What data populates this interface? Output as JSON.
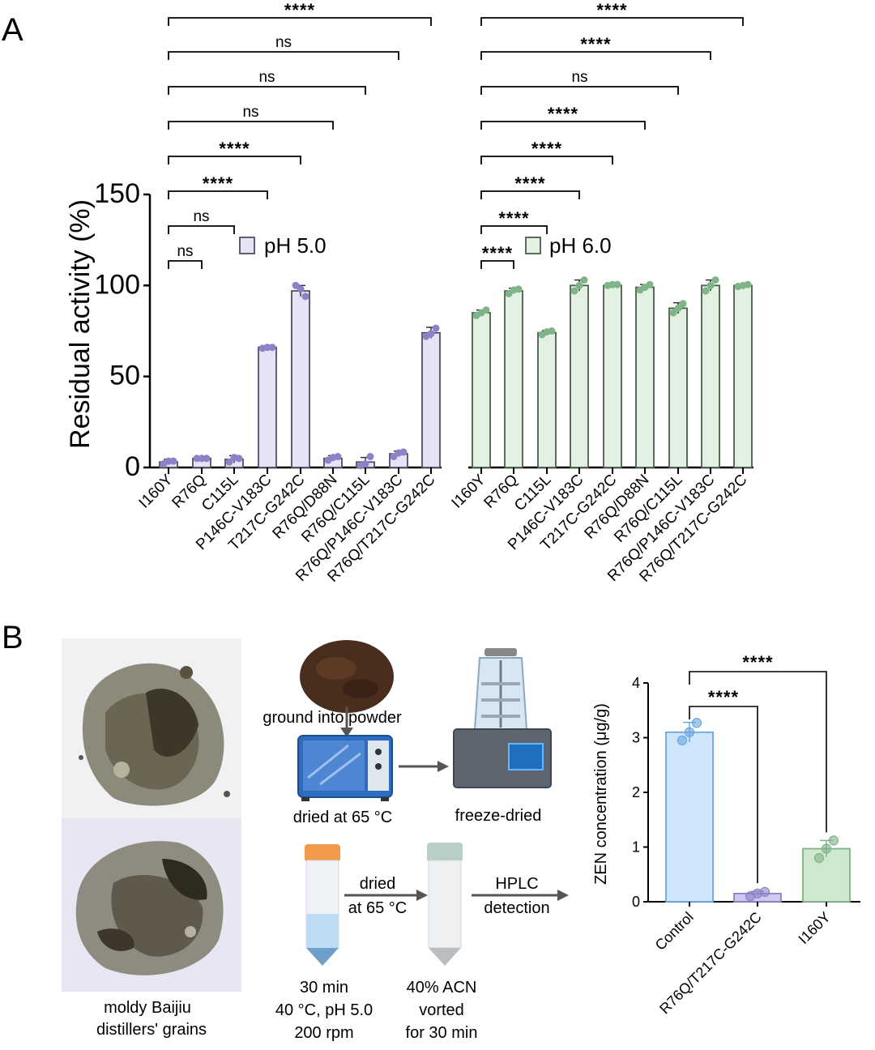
{
  "panels": {
    "a": "A",
    "b": "B"
  },
  "colors": {
    "ph5_fill": "#e6e3f7",
    "ph5_stroke": "#514f5e",
    "ph5_dot": "#8a84c6",
    "ph6_fill": "#e2f1e1",
    "ph6_stroke": "#4a5e49",
    "ph6_dot": "#7fb388",
    "control_fill": "#cfe5fb",
    "control_stroke": "#6aa6e0",
    "control_dot": "#6aa6e0",
    "r76q_fill": "#cfc9f0",
    "r76q_stroke": "#8a84c6",
    "i160y_fill": "#cfe8cf",
    "i160y_stroke": "#7fb388"
  },
  "chart_data": [
    {
      "type": "bar",
      "panel": "A",
      "ylabel": "Residual activity (%)",
      "ylim": [
        0,
        150
      ],
      "yticks": [
        0,
        50,
        100,
        150
      ],
      "categories": [
        "I160Y",
        "R76Q",
        "C115L",
        "P146C-V183C",
        "T217C-G242C",
        "R76Q/D88N",
        "R76Q/C115L",
        "R76Q/P146C-V183C",
        "R76Q/T217C-G242C"
      ],
      "series": [
        {
          "name": "pH 5.0",
          "values": [
            3,
            5,
            4.5,
            66,
            97,
            5,
            3,
            7.5,
            74
          ],
          "errors": [
            1.5,
            0.5,
            2,
            0.8,
            3,
            1.5,
            2.5,
            1.5,
            3
          ],
          "points": [
            [
              2,
              3.5,
              3.5
            ],
            [
              5,
              5,
              5
            ],
            [
              3,
              5.5,
              5
            ],
            [
              65.5,
              66,
              66
            ],
            [
              100,
              98,
              94
            ],
            [
              4,
              5.5,
              6
            ],
            [
              1,
              2,
              6
            ],
            [
              6,
              8,
              8.5
            ],
            [
              72,
              73.5,
              76.5
            ]
          ],
          "significance": [
            "",
            "ns",
            "ns",
            "****",
            "****",
            "ns",
            "ns",
            "ns",
            "****"
          ]
        },
        {
          "name": "pH 6.0",
          "values": [
            85,
            97,
            74,
            100,
            100,
            99,
            87.5,
            100,
            100
          ],
          "errors": [
            1.5,
            1.5,
            1.2,
            3,
            0.5,
            1.5,
            3,
            3,
            0.5
          ],
          "points": [
            [
              83.5,
              85,
              86.5
            ],
            [
              95.5,
              97.5,
              98
            ],
            [
              73,
              74.5,
              75
            ],
            [
              97,
              100,
              103
            ],
            [
              100,
              100.5,
              100.5
            ],
            [
              97.5,
              99,
              100.5
            ],
            [
              85,
              87.5,
              90
            ],
            [
              97,
              100,
              103
            ],
            [
              99.5,
              100,
              100.5
            ]
          ],
          "significance": [
            "",
            "****",
            "****",
            "****",
            "****",
            "****",
            "ns",
            "****",
            "****"
          ]
        }
      ]
    },
    {
      "type": "bar",
      "panel": "B",
      "ylabel": "ZEN concentration (μg/g)",
      "ylim": [
        0,
        4
      ],
      "yticks": [
        0,
        1,
        2,
        3,
        4
      ],
      "categories": [
        "Control",
        "R76Q/T217C-G242C",
        "I160Y"
      ],
      "values": [
        3.1,
        0.15,
        0.97
      ],
      "errors": [
        0.18,
        0.04,
        0.15
      ],
      "points": [
        [
          2.95,
          3.1,
          3.27
        ],
        [
          0.1,
          0.15,
          0.18
        ],
        [
          0.8,
          0.97,
          1.12
        ]
      ],
      "significance": [
        "",
        "****",
        "****"
      ]
    }
  ],
  "panel_b": {
    "photo_caption": "moldy Baijiu distillers' grains",
    "photo_caption_lines": [
      "moldy Baijiu",
      "distillers' grains"
    ],
    "step_ground": "ground into powder",
    "step_dried": "dried at 65 °C",
    "step_freeze": "freeze-dried",
    "arrow_dried_lines": [
      "dried",
      "at 65 °C"
    ],
    "arrow_hplc_lines": [
      "HPLC",
      "detection"
    ],
    "tube1_lines": [
      "30 min",
      "40 °C, pH 5.0",
      "200 rpm"
    ],
    "tube2_lines": [
      "40% ACN",
      "vorted",
      "for 30 min"
    ]
  }
}
